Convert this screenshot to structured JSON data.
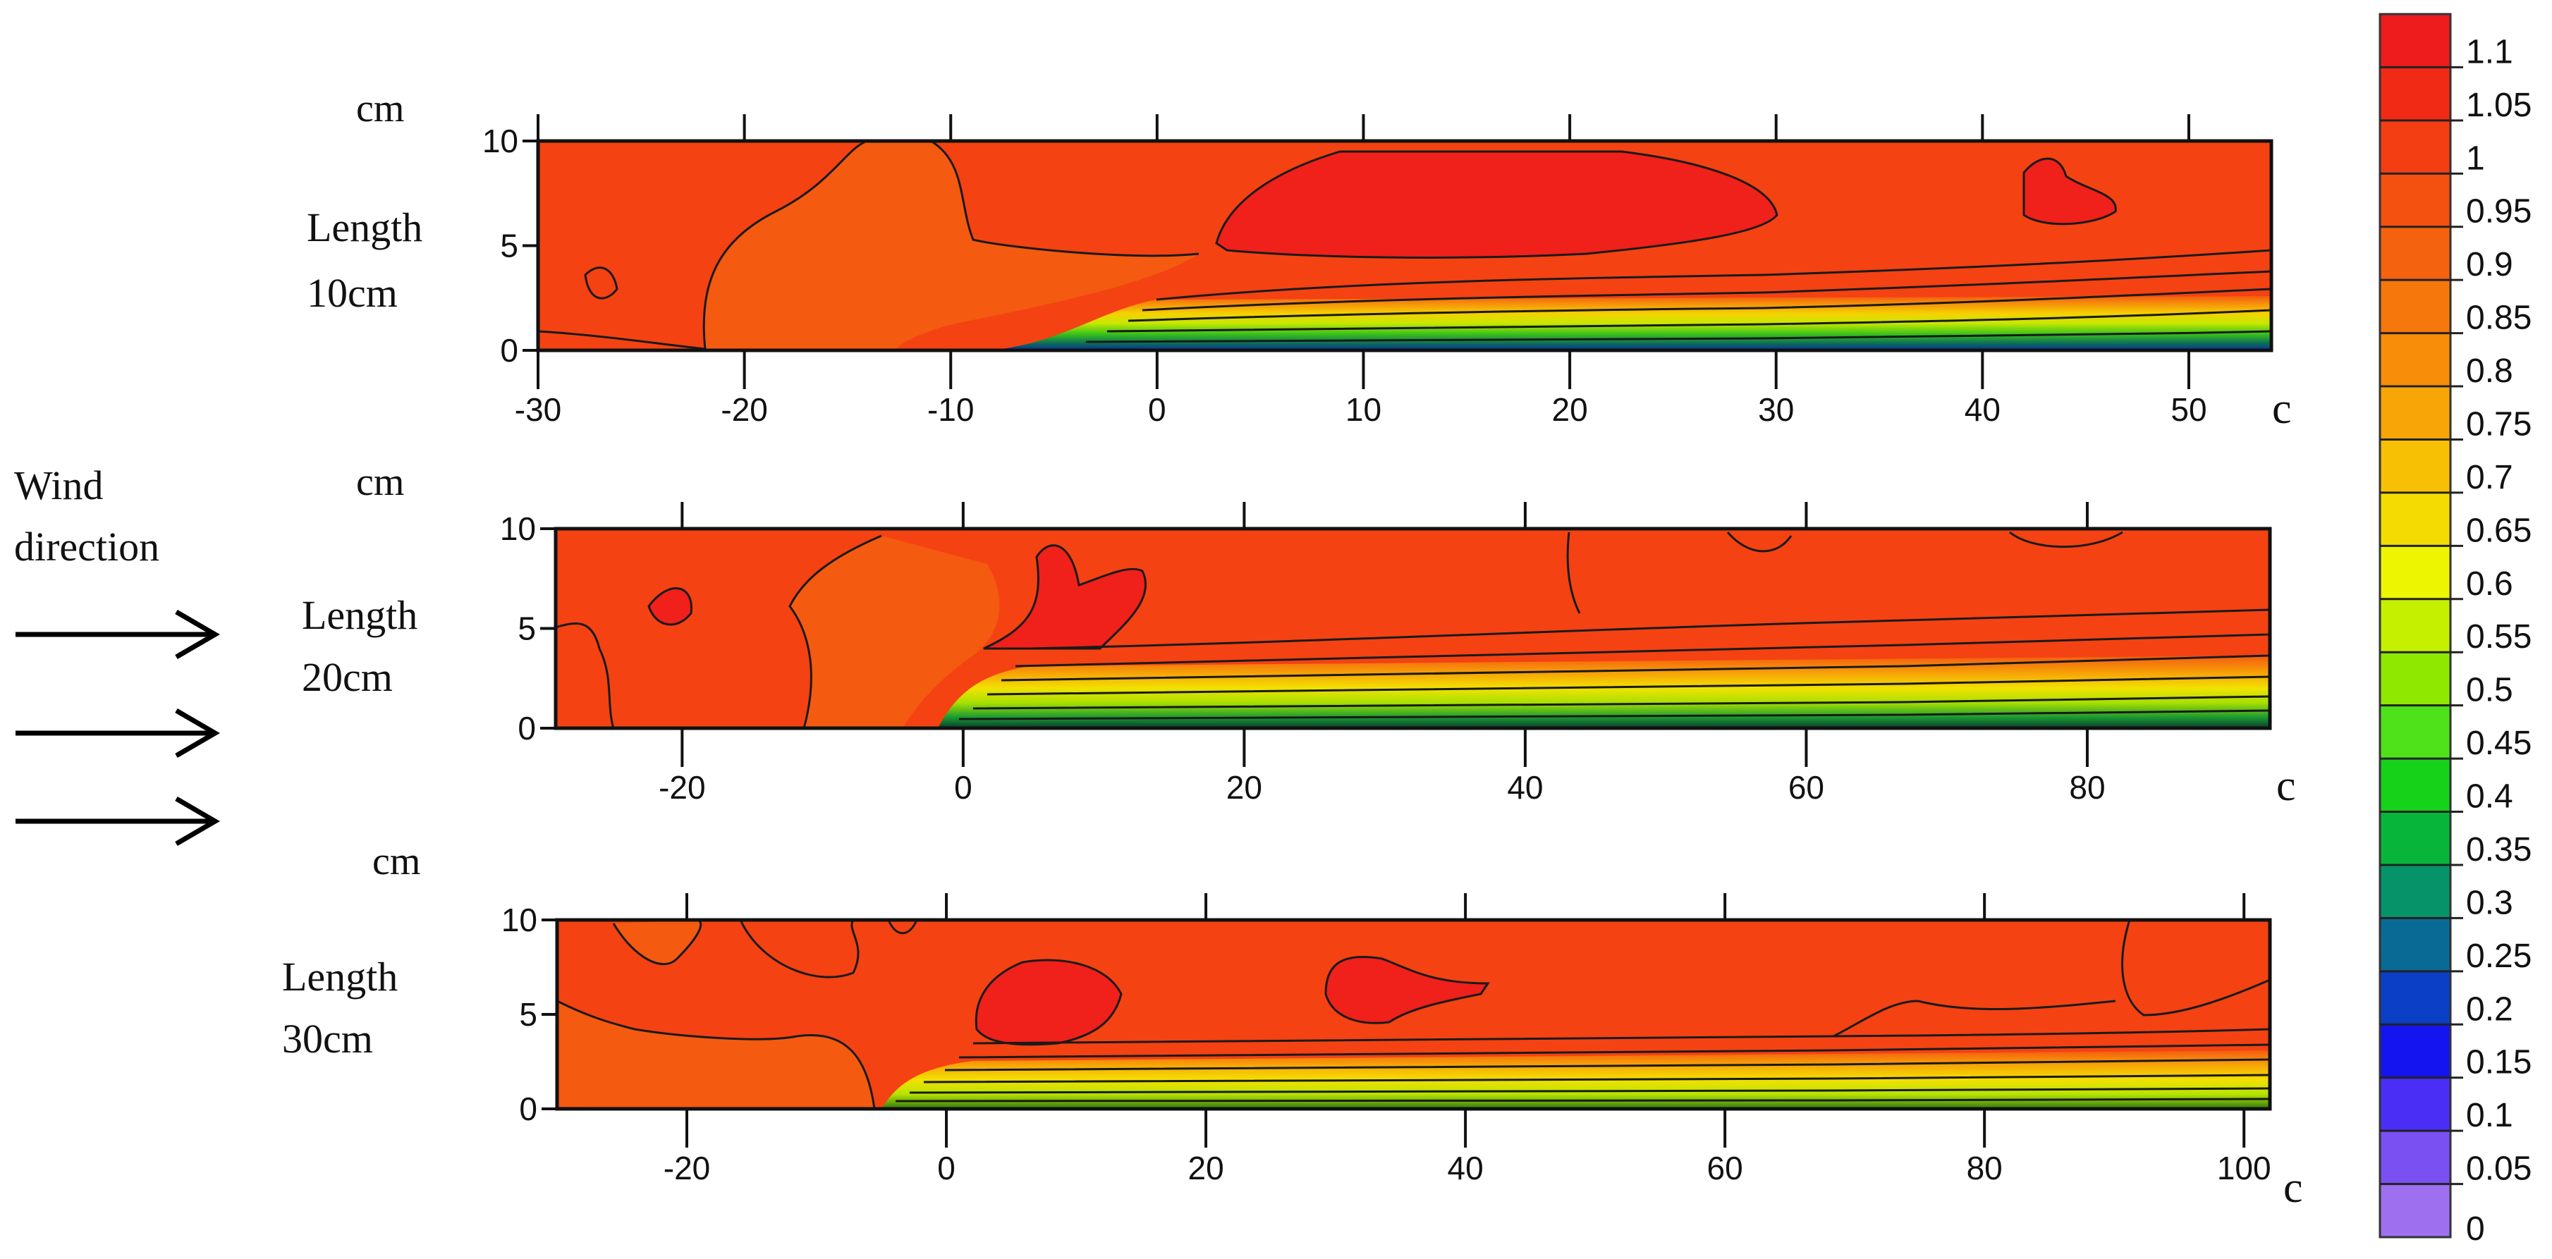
{
  "chart_data": [
    {
      "type": "heatmap",
      "name": "Length 10cm",
      "y_unit_label": "cm",
      "x_unit_label": "c",
      "panel_label_line1": "Length",
      "panel_label_line2": "10cm",
      "xlim": [
        -30,
        54
      ],
      "ylim": [
        0,
        10
      ],
      "x_ticks": [
        -30,
        -20,
        -10,
        0,
        10,
        20,
        30,
        40,
        50
      ],
      "x_tick_labels": [
        "-30",
        "-20",
        "-10",
        "0",
        "10",
        "20",
        "30",
        "40",
        "50"
      ],
      "y_ticks": [
        0,
        5,
        10
      ],
      "y_tick_labels": [
        "0",
        "5",
        "10"
      ],
      "hot_spots": [
        {
          "x": 14,
          "y": 7.5,
          "value": 1.08
        },
        {
          "x": 25,
          "y": 8,
          "value": 1.08
        },
        {
          "x": 44,
          "y": 7.5,
          "value": 1.08
        },
        {
          "x": -13,
          "y": 7,
          "value": 0.97
        }
      ],
      "low_band": {
        "x_start": 0,
        "x_end": 54,
        "height_cm": 2.5,
        "min_value": 0.25
      }
    },
    {
      "type": "heatmap",
      "name": "Length 20cm",
      "y_unit_label": "cm",
      "x_unit_label": "c",
      "panel_label_line1": "Length",
      "panel_label_line2": "20cm",
      "xlim": [
        -29,
        93
      ],
      "ylim": [
        0,
        10
      ],
      "x_ticks": [
        -20,
        0,
        20,
        40,
        60,
        80
      ],
      "x_tick_labels": [
        "-20",
        "0",
        "20",
        "40",
        "60",
        "80"
      ],
      "y_ticks": [
        0,
        5,
        10
      ],
      "y_tick_labels": [
        "0",
        "5",
        "10"
      ],
      "hot_spots": [
        {
          "x": 7,
          "y": 7,
          "value": 1.08
        },
        {
          "x": -22,
          "y": 6.5,
          "value": 1.07
        },
        {
          "x": 88,
          "y": 9.8,
          "value": 1.07
        }
      ],
      "low_band": {
        "x_start": 0,
        "x_end": 93,
        "height_cm": 3.5,
        "min_value": 0.35
      }
    },
    {
      "type": "heatmap",
      "name": "Length 30cm",
      "y_unit_label": "cm",
      "x_unit_label": "c",
      "panel_label_line1": "Length",
      "panel_label_line2": "30cm",
      "xlim": [
        -30,
        102
      ],
      "ylim": [
        0,
        10
      ],
      "x_ticks": [
        -20,
        0,
        20,
        40,
        60,
        80,
        100
      ],
      "x_tick_labels": [
        "-20",
        "0",
        "20",
        "40",
        "60",
        "80",
        "100"
      ],
      "y_ticks": [
        0,
        5,
        10
      ],
      "y_tick_labels": [
        "0",
        "5",
        "10"
      ],
      "hot_spots": [
        {
          "x": 8,
          "y": 6,
          "value": 1.08
        },
        {
          "x": 34,
          "y": 6.5,
          "value": 1.07
        }
      ],
      "low_band": {
        "x_start": 0,
        "x_end": 102,
        "height_cm": 3,
        "min_value": 0.45
      }
    }
  ],
  "wind": {
    "label_line1": "Wind",
    "label_line2": "direction"
  },
  "colorbar": {
    "labels": [
      "1.1",
      "1.05",
      "1",
      "0.95",
      "0.9",
      "0.85",
      "0.8",
      "0.75",
      "0.7",
      "0.65",
      "0.6",
      "0.55",
      "0.5",
      "0.45",
      "0.4",
      "0.35",
      "0.3",
      "0.25",
      "0.2",
      "0.15",
      "0.1",
      "0.05",
      "0"
    ],
    "colors": [
      "#ee1c1c",
      "#f02a14",
      "#f23e12",
      "#f45010",
      "#f5620f",
      "#f6770c",
      "#f78d09",
      "#f7a507",
      "#f7c005",
      "#f4dc02",
      "#eef500",
      "#c5f000",
      "#8fe800",
      "#4fe21b",
      "#16d31a",
      "#08b53b",
      "#07936a",
      "#0a6a96",
      "#0b3fc6",
      "#1414f0",
      "#4a2ef5",
      "#7a50f2",
      "#9e70f0"
    ]
  }
}
